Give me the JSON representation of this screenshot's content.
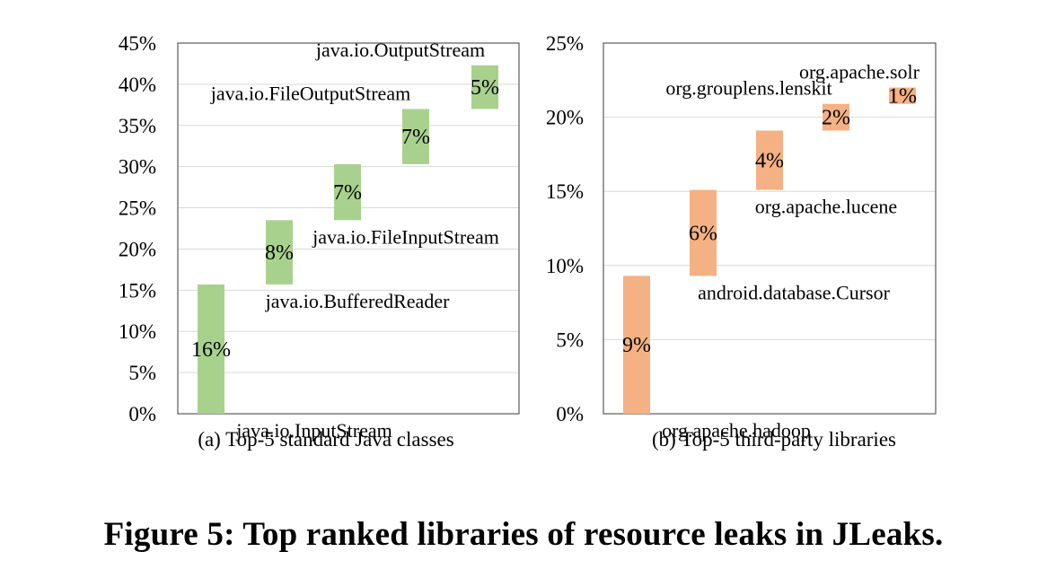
{
  "figure": {
    "caption": "Figure 5: Top ranked libraries of resource leaks in JLeaks."
  },
  "chart_data": [
    {
      "type": "bar",
      "subtype": "waterfall",
      "title": "",
      "subcaption": "(a) Top-5 standard Java classes",
      "xlabel": "",
      "ylabel": "",
      "ylim": [
        0,
        45
      ],
      "yticks": [
        "0%",
        "5%",
        "10%",
        "15%",
        "20%",
        "25%",
        "30%",
        "35%",
        "40%",
        "45%"
      ],
      "grid": true,
      "legend": "none",
      "color": "#a9d18e",
      "categories": [
        "java.io.InputStream",
        "java.io.BufferedReader",
        "java.io.FileInputStream",
        "java.io.FileOutputStream",
        "java.io.OutputStream"
      ],
      "values": [
        15.7,
        7.8,
        6.8,
        6.7,
        5.3
      ],
      "data_labels": [
        "16%",
        "8%",
        "7%",
        "7%",
        "5%"
      ],
      "label_positions": [
        "below",
        "below",
        "below",
        "above",
        "above"
      ]
    },
    {
      "type": "bar",
      "subtype": "waterfall",
      "title": "",
      "subcaption": "(b) Top-5 third-party libraries",
      "xlabel": "",
      "ylabel": "",
      "ylim": [
        0,
        25
      ],
      "yticks": [
        "0%",
        "5%",
        "10%",
        "15%",
        "20%",
        "25%"
      ],
      "grid": true,
      "legend": "none",
      "color": "#f4b183",
      "categories": [
        "org.apache.hadoop",
        "android.database.Cursor",
        "org.apache.lucene",
        "org.grouplens.lenskit",
        "org.apache.solr"
      ],
      "values": [
        9.3,
        5.8,
        4.0,
        1.8,
        1.1
      ],
      "data_labels": [
        "9%",
        "6%",
        "4%",
        "2%",
        "1%"
      ],
      "label_positions": [
        "below",
        "below",
        "below",
        "above",
        "above"
      ]
    }
  ]
}
